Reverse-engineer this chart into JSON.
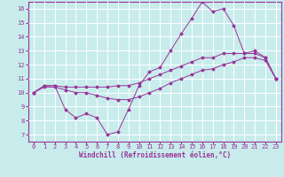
{
  "xlabel": "Windchill (Refroidissement éolien,°C)",
  "ylabel": "",
  "bg_color": "#c8ecec",
  "grid_color": "#ffffff",
  "line_color": "#993399",
  "xlim": [
    -0.5,
    23.5
  ],
  "ylim": [
    6.5,
    16.5
  ],
  "xticks": [
    0,
    1,
    2,
    3,
    4,
    5,
    6,
    7,
    8,
    9,
    10,
    11,
    12,
    13,
    14,
    15,
    16,
    17,
    18,
    19,
    20,
    21,
    22,
    23
  ],
  "yticks": [
    7,
    8,
    9,
    10,
    11,
    12,
    13,
    14,
    15,
    16
  ],
  "line1_x": [
    0,
    1,
    2,
    3,
    4,
    5,
    6,
    7,
    8,
    9,
    10,
    11,
    12,
    13,
    14,
    15,
    16,
    17,
    18,
    19,
    20,
    21,
    22,
    23
  ],
  "line1_y": [
    10.0,
    10.5,
    10.5,
    8.8,
    8.2,
    8.5,
    8.2,
    7.0,
    7.2,
    8.8,
    10.5,
    11.5,
    11.8,
    13.0,
    14.2,
    15.3,
    16.5,
    15.8,
    16.0,
    14.8,
    12.8,
    13.0,
    12.5,
    11.0
  ],
  "line2_x": [
    0,
    1,
    2,
    3,
    4,
    5,
    6,
    7,
    8,
    9,
    10,
    11,
    12,
    13,
    14,
    15,
    16,
    17,
    18,
    19,
    20,
    21,
    22,
    23
  ],
  "line2_y": [
    10.0,
    10.5,
    10.5,
    10.4,
    10.4,
    10.4,
    10.4,
    10.4,
    10.5,
    10.5,
    10.7,
    11.0,
    11.3,
    11.6,
    11.9,
    12.2,
    12.5,
    12.5,
    12.8,
    12.8,
    12.8,
    12.8,
    12.5,
    11.0
  ],
  "line3_x": [
    0,
    1,
    2,
    3,
    4,
    5,
    6,
    7,
    8,
    9,
    10,
    11,
    12,
    13,
    14,
    15,
    16,
    17,
    18,
    19,
    20,
    21,
    22,
    23
  ],
  "line3_y": [
    10.0,
    10.4,
    10.4,
    10.2,
    10.0,
    10.0,
    9.8,
    9.6,
    9.5,
    9.5,
    9.7,
    10.0,
    10.3,
    10.7,
    11.0,
    11.3,
    11.6,
    11.7,
    12.0,
    12.2,
    12.5,
    12.5,
    12.3,
    11.0
  ],
  "xlabel_fontsize": 5.5,
  "tick_fontsize": 5,
  "marker": "D",
  "marker_size": 1.5,
  "linewidth": 0.7
}
